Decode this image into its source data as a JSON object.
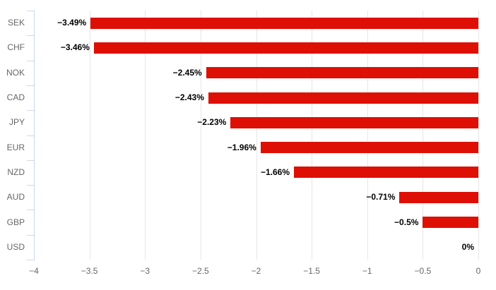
{
  "chart_data": {
    "type": "bar",
    "orientation": "horizontal",
    "title": "",
    "categories": [
      "SEK",
      "CHF",
      "NOK",
      "CAD",
      "JPY",
      "EUR",
      "NZD",
      "AUD",
      "GBP",
      "USD"
    ],
    "values": [
      -3.49,
      -3.46,
      -2.45,
      -2.43,
      -2.23,
      -1.96,
      -1.66,
      -0.71,
      -0.5,
      0
    ],
    "data_labels": [
      "−3.49%",
      "−3.46%",
      "−2.45%",
      "−2.43%",
      "−2.23%",
      "−1.96%",
      "−1.66%",
      "−0.71%",
      "−0.5%",
      "0%"
    ],
    "xlabel": "",
    "ylabel": "",
    "xlim": [
      -4,
      0
    ],
    "xticks": [
      -4,
      -3.5,
      -3,
      -2.5,
      -2,
      -1.5,
      -1,
      -0.5,
      0
    ],
    "xtick_labels": [
      "−4",
      "−3.5",
      "−3",
      "−2.5",
      "−2",
      "−1.5",
      "−1",
      "−0.5",
      "0"
    ],
    "grid": true,
    "legend": false,
    "colors": {
      "bar": "#de0f04",
      "gridline": "#e6e6e6",
      "axis_line": "#ccd6eb",
      "tick_label": "#666666",
      "data_label": "#000000",
      "background": "#ffffff"
    }
  }
}
